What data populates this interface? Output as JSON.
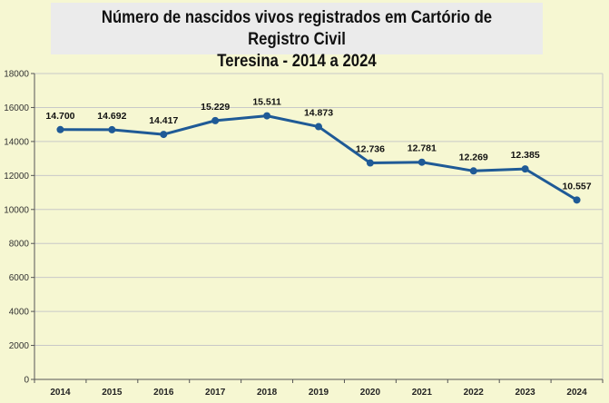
{
  "chart_data": {
    "type": "line",
    "title": "Número de nascidos vivos registrados em Cartório de Registro Civil",
    "subtitle": "Teresina - 2014 a 2024",
    "xlabel": "",
    "ylabel": "",
    "categories": [
      "2014",
      "2015",
      "2016",
      "2017",
      "2018",
      "2019",
      "2020",
      "2021",
      "2022",
      "2023",
      "2024"
    ],
    "values": [
      14700,
      14692,
      14417,
      15229,
      15511,
      14873,
      12736,
      12781,
      12269,
      12385,
      10557
    ],
    "data_labels": [
      "14.700",
      "14.692",
      "14.417",
      "15.229",
      "15.511",
      "14.873",
      "12.736",
      "12.781",
      "12.269",
      "12.385",
      "10.557"
    ],
    "ylim": [
      0,
      18000
    ],
    "yticks": [
      "0",
      "2000",
      "4000",
      "6000",
      "8000",
      "10000",
      "12000",
      "14000",
      "16000",
      "18000"
    ],
    "grid": true,
    "legend": "none",
    "colors": {
      "line": "#1f5a96",
      "background": "#f6f7d2",
      "title_box": "#ebebeb",
      "grid": "#c8c8c8"
    }
  }
}
